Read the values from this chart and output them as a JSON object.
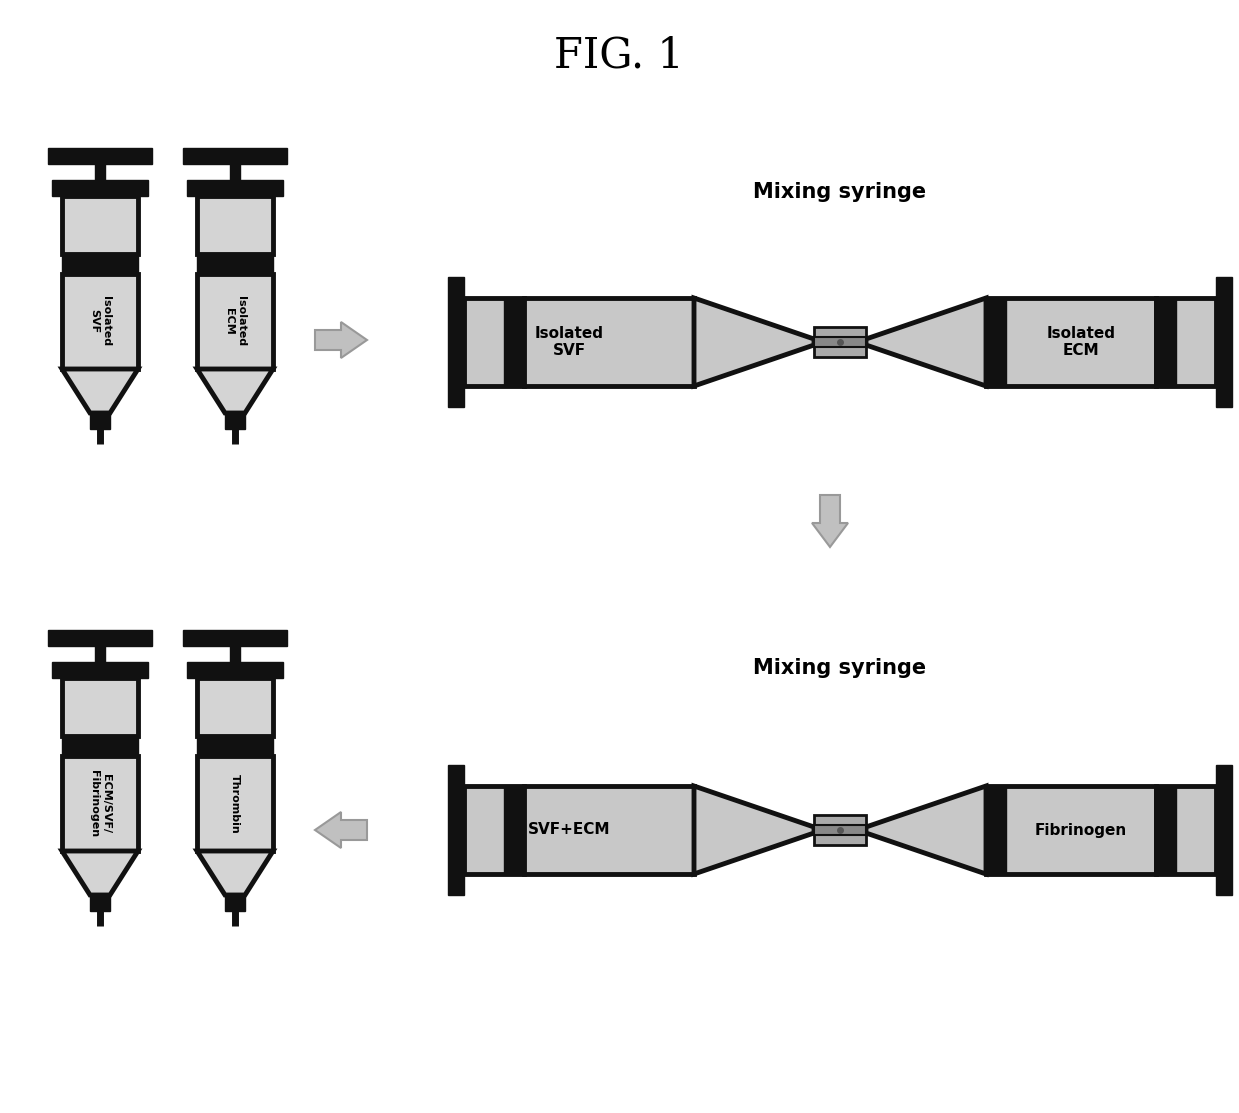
{
  "title": "FIG. 1",
  "bg_color": "#ffffff",
  "syringe_fill": "#d4d4d4",
  "body_color": "#111111",
  "mix_fill_left": "#c8c8c8",
  "mix_fill_right": "#c8c8c8",
  "arrow_fill": "#c0c0c0",
  "arrow_edge": "#999999",
  "top_row": {
    "s1_label": "Isolated\nSVF",
    "s2_label": "Isolated\nECM",
    "mix_title": "Mixing syringe",
    "mix_left": "Isolated\nSVF",
    "mix_right": "Isolated\nECM"
  },
  "bottom_row": {
    "s1_label": "ECM/SVF/\nFibrinogen",
    "s2_label": "Thrombin",
    "mix_title": "Mixing syringe",
    "mix_left": "SVF+ECM",
    "mix_right": "Fibrinogen"
  }
}
